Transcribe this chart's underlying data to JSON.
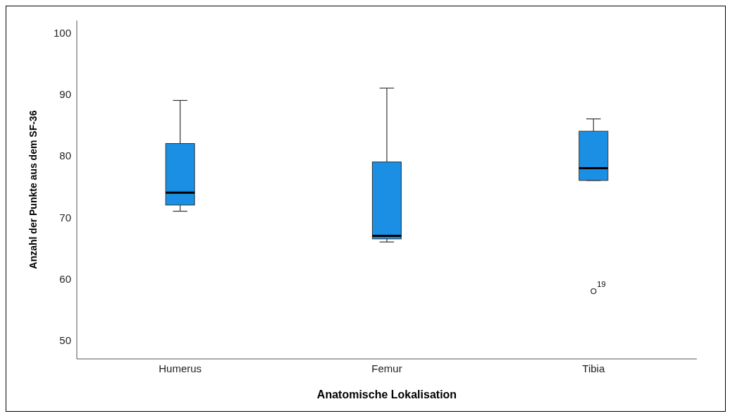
{
  "chart_data": {
    "type": "box",
    "xlabel": "Anatomische Lokalisation",
    "ylabel": "Anzahl der Punkte aus dem SF-36",
    "categories": [
      "Humerus",
      "Femur",
      "Tibia"
    ],
    "color": "#1a8fe3",
    "boxes": [
      {
        "low": 71,
        "q1": 72,
        "median": 74,
        "q3": 82,
        "high": 89
      },
      {
        "low": 66,
        "q1": 66.5,
        "median": 67,
        "q3": 79,
        "high": 91
      },
      {
        "low": 76,
        "q1": 76,
        "median": 78,
        "q3": 84,
        "high": 86,
        "outliers": [
          58
        ]
      }
    ],
    "annotations": [
      "19"
    ],
    "ylim": [
      47,
      102
    ],
    "yticks": [
      50,
      60,
      70,
      80,
      90,
      100
    ]
  }
}
